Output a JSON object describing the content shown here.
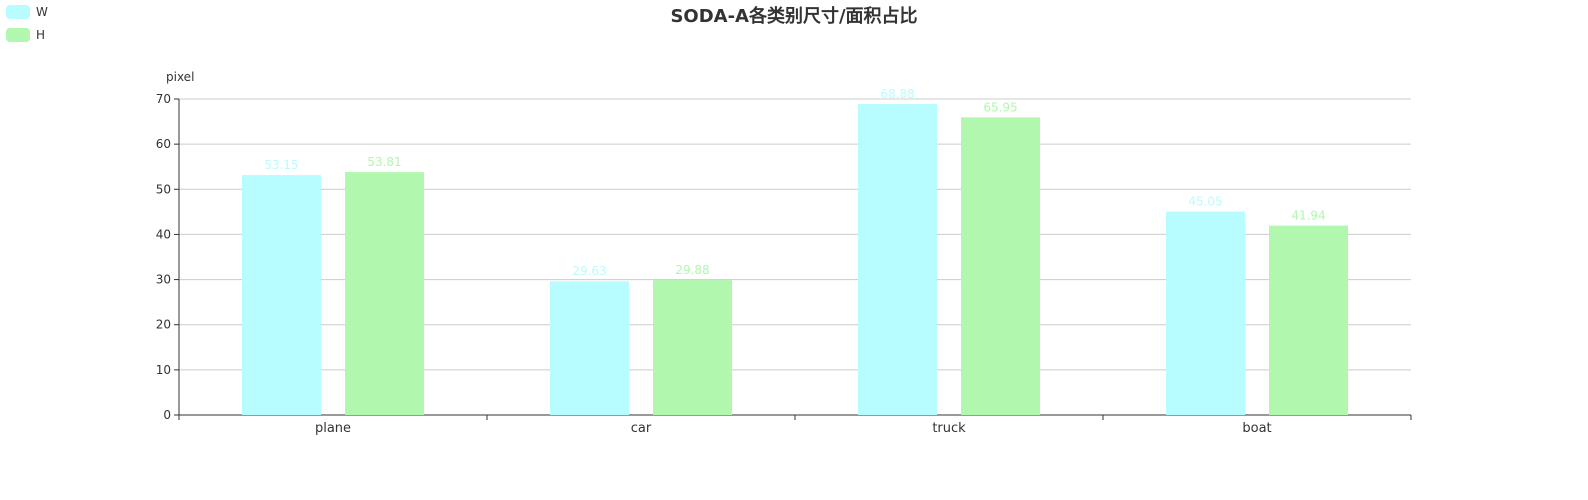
{
  "chart_data": {
    "type": "bar",
    "title": "SODA-A各类别尺寸/面积占比",
    "ylabel": "pixel",
    "xlabel": "",
    "categories": [
      "plane",
      "car",
      "truck",
      "boat"
    ],
    "series": [
      {
        "name": "W",
        "values": [
          53.15,
          29.63,
          68.88,
          45.05
        ],
        "color": "#b7fdff"
      },
      {
        "name": "H",
        "values": [
          53.81,
          29.88,
          65.95,
          41.94
        ],
        "color": "#b1f7ae"
      }
    ],
    "ylim": [
      0,
      70
    ],
    "yticks": [
      0,
      10,
      20,
      30,
      40,
      50,
      60,
      70
    ],
    "grid": true,
    "legend_position": "top-left"
  },
  "colors": {
    "axis": "#333333",
    "grid": "#cccccc",
    "text": "#333333"
  }
}
